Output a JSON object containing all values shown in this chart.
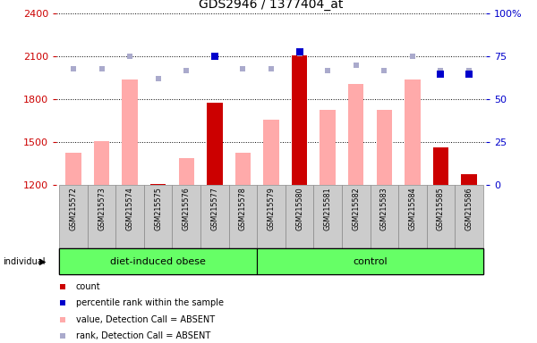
{
  "title": "GDS2946 / 1377404_at",
  "samples": [
    "GSM215572",
    "GSM215573",
    "GSM215574",
    "GSM215575",
    "GSM215576",
    "GSM215577",
    "GSM215578",
    "GSM215579",
    "GSM215580",
    "GSM215581",
    "GSM215582",
    "GSM215583",
    "GSM215584",
    "GSM215585",
    "GSM215586"
  ],
  "count_values": [
    1200,
    1200,
    1200,
    1210,
    1200,
    1775,
    1200,
    1200,
    2110,
    1200,
    1200,
    1200,
    1200,
    1465,
    1275
  ],
  "pink_values": [
    1430,
    1510,
    1940,
    1210,
    1390,
    1775,
    1430,
    1660,
    2110,
    1730,
    1910,
    1730,
    1940,
    1465,
    1275
  ],
  "rank_dots_y": [
    68,
    68,
    75,
    62,
    67,
    75,
    68,
    68,
    77,
    67,
    70,
    67,
    75,
    67,
    67
  ],
  "blue_dots_y": [
    null,
    null,
    null,
    null,
    null,
    75,
    null,
    null,
    78,
    null,
    null,
    null,
    null,
    65,
    65
  ],
  "ylim": [
    1200,
    2400
  ],
  "yticks_left": [
    1200,
    1500,
    1800,
    2100,
    2400
  ],
  "yticks_right": [
    0,
    25,
    50,
    75,
    100
  ],
  "group_boundary": 7,
  "bar_color_red": "#cc0000",
  "bar_color_pink": "#ffaaaa",
  "dot_color_blue_dark": "#0000cc",
  "dot_color_blue_light": "#aaaacc",
  "left_tick_color": "#cc0000",
  "right_tick_color": "#0000cc",
  "group_fill": "#66ff66",
  "label_box_fill": "#cccccc",
  "label_box_edge": "#888888",
  "fig_bg": "#ffffff"
}
